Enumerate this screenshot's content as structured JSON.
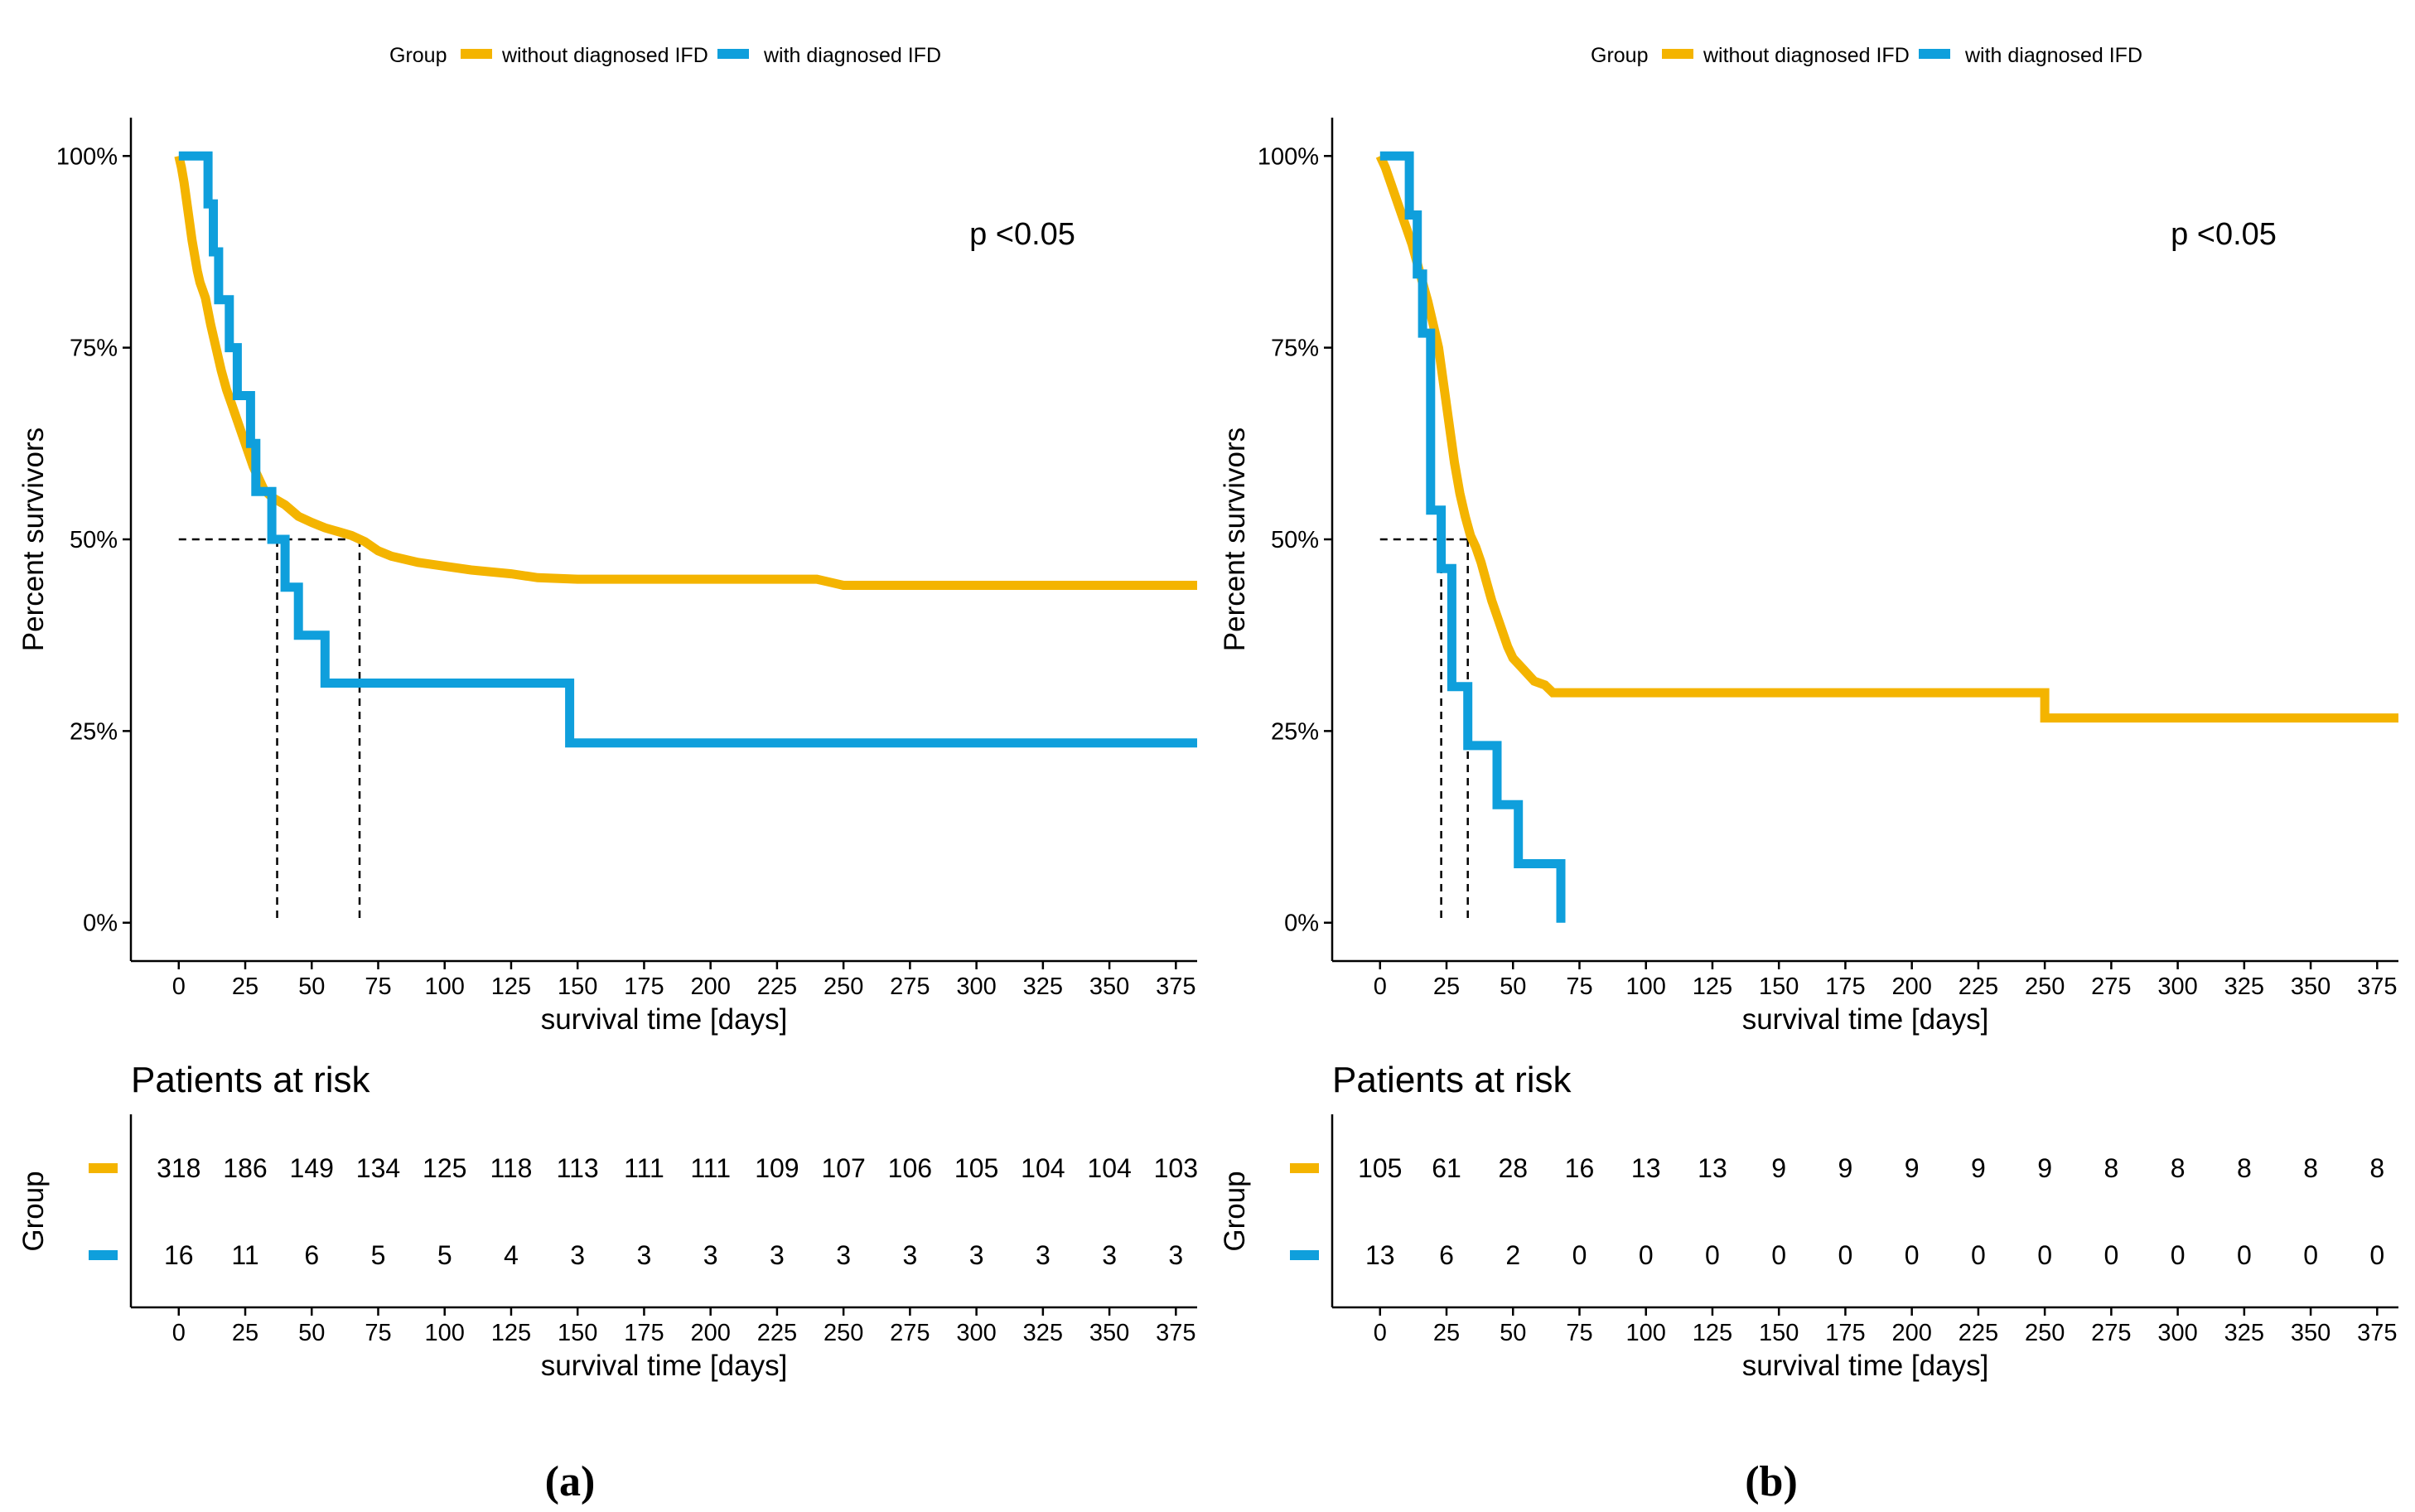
{
  "chart_data": [
    {
      "panel_label": "(a)",
      "type": "line",
      "subtype": "kaplan-meier",
      "legend": {
        "title": "Group",
        "position": "top",
        "entries": [
          "without diagnosed IFD",
          "with diagnosed IFD"
        ]
      },
      "annotation": "p <0.05",
      "xlabel": "survival time [days]",
      "ylabel": "Percent survivors",
      "xlim": [
        -18,
        383
      ],
      "ylim": [
        -0.05,
        1.05
      ],
      "xticks": [
        0,
        25,
        50,
        75,
        100,
        125,
        150,
        175,
        200,
        225,
        250,
        275,
        300,
        325,
        350,
        375
      ],
      "yticks": [
        0,
        0.25,
        0.5,
        0.75,
        1.0
      ],
      "ytick_labels": [
        "0%",
        "25%",
        "50%",
        "75%",
        "100%"
      ],
      "grid": false,
      "median_lines": [
        {
          "series": "with diagnosed IFD",
          "median_days": 37
        },
        {
          "series": "without diagnosed IFD",
          "median_days": 68
        }
      ],
      "series": [
        {
          "name": "without diagnosed IFD",
          "color": "#F4B400",
          "points": [
            [
              0,
              1.0
            ],
            [
              1,
              0.985
            ],
            [
              2,
              0.965
            ],
            [
              3,
              0.94
            ],
            [
              4,
              0.915
            ],
            [
              5,
              0.89
            ],
            [
              6,
              0.87
            ],
            [
              7,
              0.85
            ],
            [
              8,
              0.835
            ],
            [
              10,
              0.815
            ],
            [
              12,
              0.78
            ],
            [
              14,
              0.75
            ],
            [
              16,
              0.72
            ],
            [
              18,
              0.695
            ],
            [
              20,
              0.675
            ],
            [
              22,
              0.655
            ],
            [
              24,
              0.635
            ],
            [
              26,
              0.615
            ],
            [
              28,
              0.595
            ],
            [
              30,
              0.58
            ],
            [
              32,
              0.565
            ],
            [
              35,
              0.555
            ],
            [
              40,
              0.545
            ],
            [
              45,
              0.53
            ],
            [
              50,
              0.522
            ],
            [
              55,
              0.515
            ],
            [
              60,
              0.51
            ],
            [
              65,
              0.505
            ],
            [
              70,
              0.497
            ],
            [
              75,
              0.485
            ],
            [
              80,
              0.478
            ],
            [
              90,
              0.47
            ],
            [
              100,
              0.465
            ],
            [
              110,
              0.46
            ],
            [
              125,
              0.455
            ],
            [
              135,
              0.45
            ],
            [
              150,
              0.448
            ],
            [
              200,
              0.448
            ],
            [
              240,
              0.448
            ],
            [
              245,
              0.444
            ],
            [
              250,
              0.44
            ],
            [
              383,
              0.44
            ]
          ]
        },
        {
          "name": "with diagnosed IFD",
          "color": "#0F9FDC",
          "points": [
            [
              0,
              1.0
            ],
            [
              11,
              1.0
            ],
            [
              11,
              0.9375
            ],
            [
              13,
              0.9375
            ],
            [
              13,
              0.875
            ],
            [
              15,
              0.875
            ],
            [
              15,
              0.8125
            ],
            [
              19,
              0.8125
            ],
            [
              19,
              0.75
            ],
            [
              22,
              0.75
            ],
            [
              22,
              0.6875
            ],
            [
              27,
              0.6875
            ],
            [
              27,
              0.625
            ],
            [
              29,
              0.625
            ],
            [
              29,
              0.5625
            ],
            [
              35,
              0.5625
            ],
            [
              35,
              0.5
            ],
            [
              40,
              0.5
            ],
            [
              40,
              0.4375
            ],
            [
              45,
              0.4375
            ],
            [
              45,
              0.375
            ],
            [
              55,
              0.375
            ],
            [
              55,
              0.3125
            ],
            [
              147,
              0.3125
            ],
            [
              147,
              0.2344
            ],
            [
              383,
              0.2344
            ]
          ]
        }
      ],
      "risk_table": {
        "title": "Patients at risk",
        "ylabel": "Group",
        "xlabel": "survival time [days]",
        "times": [
          0,
          25,
          50,
          75,
          100,
          125,
          150,
          175,
          200,
          225,
          250,
          275,
          300,
          325,
          350,
          375
        ],
        "rows": [
          {
            "series": "without diagnosed IFD",
            "color": "#F4B400",
            "counts": [
              318,
              186,
              149,
              134,
              125,
              118,
              113,
              111,
              111,
              109,
              107,
              106,
              105,
              104,
              104,
              103
            ]
          },
          {
            "series": "with diagnosed IFD",
            "color": "#0F9FDC",
            "counts": [
              16,
              11,
              6,
              5,
              5,
              4,
              3,
              3,
              3,
              3,
              3,
              3,
              3,
              3,
              3,
              3
            ]
          }
        ]
      }
    },
    {
      "panel_label": "(b)",
      "type": "line",
      "subtype": "kaplan-meier",
      "legend": {
        "title": "Group",
        "position": "top",
        "entries": [
          "without diagnosed IFD",
          "with diagnosed IFD"
        ]
      },
      "annotation": "p <0.05",
      "xlabel": "survival time [days]",
      "ylabel": "Percent survivors",
      "xlim": [
        -18,
        383
      ],
      "ylim": [
        -0.05,
        1.05
      ],
      "xticks": [
        0,
        25,
        50,
        75,
        100,
        125,
        150,
        175,
        200,
        225,
        250,
        275,
        300,
        325,
        350,
        375
      ],
      "yticks": [
        0,
        0.25,
        0.5,
        0.75,
        1.0
      ],
      "ytick_labels": [
        "0%",
        "25%",
        "50%",
        "75%",
        "100%"
      ],
      "grid": false,
      "median_lines": [
        {
          "series": "with diagnosed IFD",
          "median_days": 23
        },
        {
          "series": "without diagnosed IFD",
          "median_days": 33
        }
      ],
      "series": [
        {
          "name": "without diagnosed IFD",
          "color": "#F4B400",
          "points": [
            [
              0,
              1.0
            ],
            [
              2,
              0.985
            ],
            [
              4,
              0.965
            ],
            [
              6,
              0.945
            ],
            [
              8,
              0.925
            ],
            [
              10,
              0.905
            ],
            [
              12,
              0.885
            ],
            [
              14,
              0.86
            ],
            [
              16,
              0.835
            ],
            [
              18,
              0.81
            ],
            [
              20,
              0.78
            ],
            [
              22,
              0.75
            ],
            [
              24,
              0.7
            ],
            [
              26,
              0.65
            ],
            [
              28,
              0.6
            ],
            [
              30,
              0.56
            ],
            [
              32,
              0.53
            ],
            [
              34,
              0.505
            ],
            [
              36,
              0.49
            ],
            [
              38,
              0.47
            ],
            [
              40,
              0.445
            ],
            [
              42,
              0.42
            ],
            [
              44,
              0.4
            ],
            [
              46,
              0.38
            ],
            [
              48,
              0.36
            ],
            [
              50,
              0.345
            ],
            [
              54,
              0.33
            ],
            [
              58,
              0.315
            ],
            [
              62,
              0.31
            ],
            [
              65,
              0.3
            ],
            [
              250,
              0.3
            ],
            [
              250,
              0.267
            ],
            [
              383,
              0.267
            ]
          ]
        },
        {
          "name": "with diagnosed IFD",
          "color": "#0F9FDC",
          "points": [
            [
              0,
              1.0
            ],
            [
              11,
              1.0
            ],
            [
              11,
              0.923
            ],
            [
              14,
              0.923
            ],
            [
              14,
              0.846
            ],
            [
              16,
              0.846
            ],
            [
              16,
              0.769
            ],
            [
              19,
              0.769
            ],
            [
              19,
              0.538
            ],
            [
              23,
              0.538
            ],
            [
              23,
              0.462
            ],
            [
              27,
              0.462
            ],
            [
              27,
              0.308
            ],
            [
              33,
              0.308
            ],
            [
              33,
              0.231
            ],
            [
              44,
              0.231
            ],
            [
              44,
              0.154
            ],
            [
              52,
              0.154
            ],
            [
              52,
              0.077
            ],
            [
              68,
              0.077
            ],
            [
              68,
              0.0
            ]
          ]
        }
      ],
      "risk_table": {
        "title": "Patients at risk",
        "ylabel": "Group",
        "xlabel": "survival time [days]",
        "times": [
          0,
          25,
          50,
          75,
          100,
          125,
          150,
          175,
          200,
          225,
          250,
          275,
          300,
          325,
          350,
          375
        ],
        "rows": [
          {
            "series": "without diagnosed IFD",
            "color": "#F4B400",
            "counts": [
              105,
              61,
              28,
              16,
              13,
              13,
              9,
              9,
              9,
              9,
              9,
              8,
              8,
              8,
              8,
              8
            ]
          },
          {
            "series": "with diagnosed IFD",
            "color": "#0F9FDC",
            "counts": [
              13,
              6,
              2,
              0,
              0,
              0,
              0,
              0,
              0,
              0,
              0,
              0,
              0,
              0,
              0,
              0
            ]
          }
        ]
      }
    }
  ]
}
